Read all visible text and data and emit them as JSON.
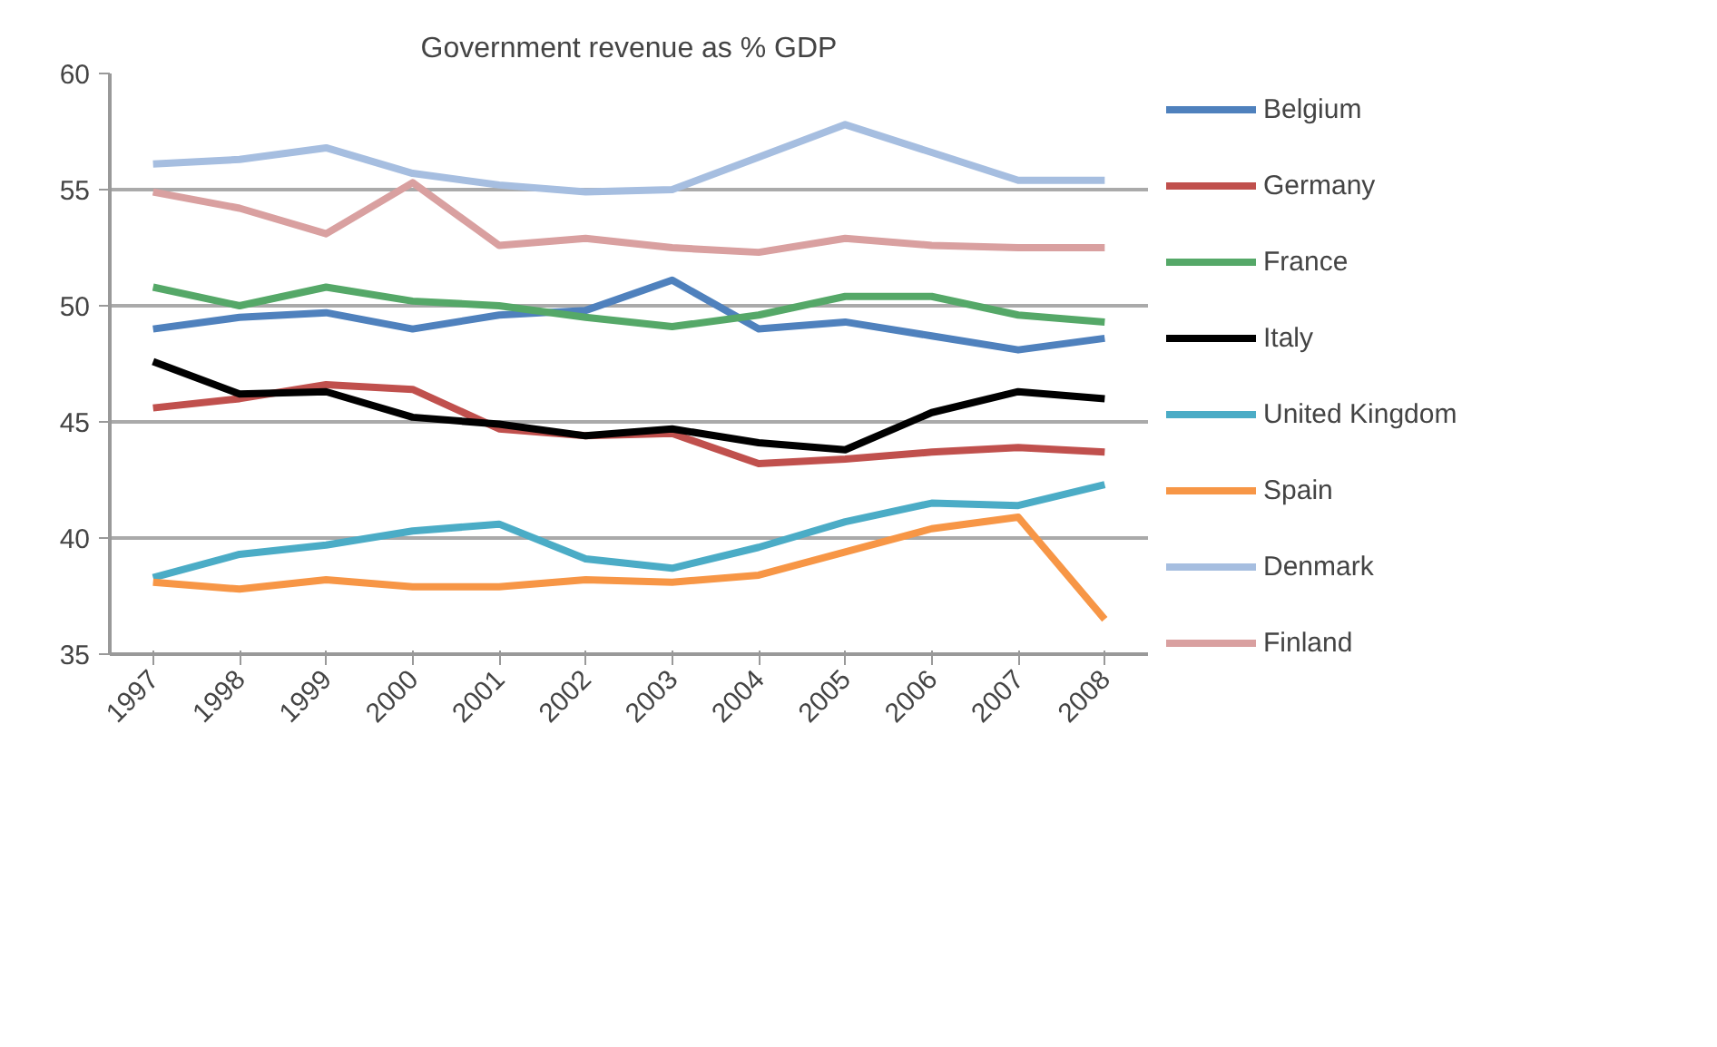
{
  "chart_data": {
    "type": "line",
    "title": "Government revenue as % GDP",
    "categories": [
      "1997",
      "1998",
      "1999",
      "2000",
      "2001",
      "2002",
      "2003",
      "2004",
      "2005",
      "2006",
      "2007",
      "2008"
    ],
    "series": [
      {
        "name": "Belgium",
        "color": "#4f81bd",
        "values": [
          49.0,
          49.5,
          49.7,
          49.0,
          49.6,
          49.8,
          51.1,
          49.0,
          49.3,
          48.7,
          48.1,
          48.6
        ]
      },
      {
        "name": "Germany",
        "color": "#c0504d",
        "values": [
          45.6,
          46.0,
          46.6,
          46.4,
          44.7,
          44.4,
          44.5,
          43.2,
          43.4,
          43.7,
          43.9,
          43.7
        ]
      },
      {
        "name": "France",
        "color": "#55a868",
        "values": [
          50.8,
          50.0,
          50.8,
          50.2,
          50.0,
          49.5,
          49.1,
          49.6,
          50.4,
          50.4,
          49.6,
          49.3
        ]
      },
      {
        "name": "Italy",
        "color": "#000000",
        "values": [
          47.6,
          46.2,
          46.3,
          45.2,
          44.9,
          44.4,
          44.7,
          44.1,
          43.8,
          45.4,
          46.3,
          46.0
        ]
      },
      {
        "name": "United Kingdom",
        "color": "#4bacc6",
        "values": [
          38.3,
          39.3,
          39.7,
          40.3,
          40.6,
          39.1,
          38.7,
          39.6,
          40.7,
          41.5,
          41.4,
          42.3
        ]
      },
      {
        "name": "Spain",
        "color": "#f79646",
        "values": [
          38.1,
          37.8,
          38.2,
          37.9,
          37.9,
          38.2,
          38.1,
          38.4,
          39.4,
          40.4,
          40.9,
          36.5
        ]
      },
      {
        "name": "Denmark",
        "color": "#a6bee0",
        "values": [
          56.1,
          56.3,
          56.8,
          55.7,
          55.2,
          54.9,
          55.0,
          56.4,
          57.8,
          56.6,
          55.4,
          55.4
        ]
      },
      {
        "name": "Finland",
        "color": "#d9a0a0",
        "values": [
          54.9,
          54.2,
          53.1,
          55.3,
          52.6,
          52.9,
          52.5,
          52.3,
          52.9,
          52.6,
          52.5,
          52.5
        ]
      }
    ],
    "ylim": [
      35,
      60
    ],
    "yticks": [
      35,
      40,
      45,
      50,
      55,
      60
    ],
    "grid": "y",
    "legend": "right",
    "marker": "none",
    "line_style": "solid"
  }
}
